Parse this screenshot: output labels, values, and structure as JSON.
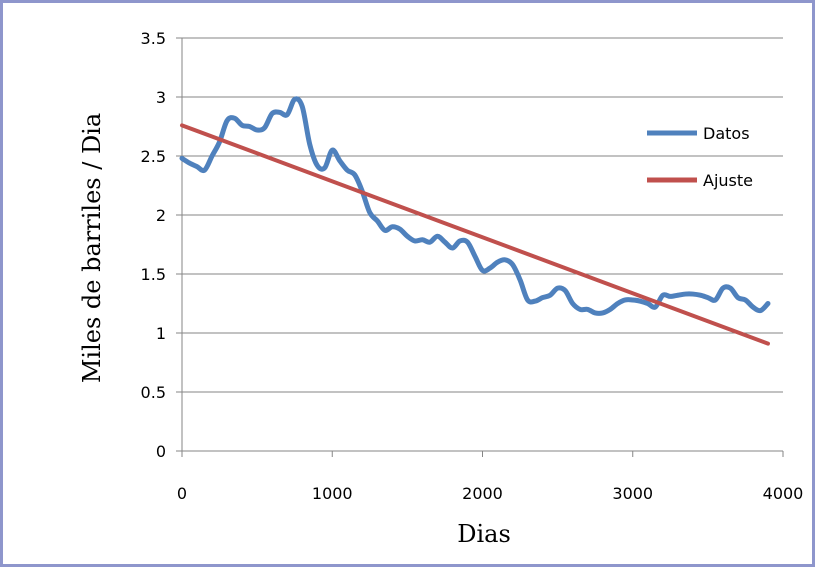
{
  "chart_data": {
    "type": "line",
    "title": "",
    "xlabel": "Dias",
    "ylabel": "Miles de barriles / Dia",
    "xlim": [
      0,
      4000
    ],
    "ylim": [
      0,
      3.5
    ],
    "x_ticks": [
      "0",
      "1000",
      "2000",
      "3000",
      "4000"
    ],
    "y_ticks": [
      "0",
      "0.5",
      "1",
      "1.5",
      "2",
      "2.5",
      "3",
      "3.5"
    ],
    "grid": "horizontal",
    "legend_position": "right",
    "series": [
      {
        "name": "Datos",
        "color": "#4f81bd",
        "x": [
          0,
          50,
          100,
          150,
          200,
          250,
          300,
          350,
          400,
          450,
          500,
          550,
          600,
          650,
          700,
          750,
          800,
          850,
          900,
          950,
          1000,
          1050,
          1100,
          1150,
          1200,
          1250,
          1300,
          1350,
          1400,
          1450,
          1500,
          1550,
          1600,
          1650,
          1700,
          1750,
          1800,
          1850,
          1900,
          1950,
          2000,
          2050,
          2100,
          2150,
          2200,
          2250,
          2300,
          2350,
          2400,
          2450,
          2500,
          2550,
          2600,
          2650,
          2700,
          2750,
          2800,
          2850,
          2900,
          2950,
          3000,
          3050,
          3100,
          3150,
          3200,
          3250,
          3300,
          3350,
          3400,
          3450,
          3500,
          3550,
          3600,
          3650,
          3700,
          3750,
          3800,
          3850,
          3900
        ],
        "y": [
          2.48,
          2.44,
          2.41,
          2.38,
          2.5,
          2.62,
          2.8,
          2.82,
          2.76,
          2.75,
          2.72,
          2.74,
          2.86,
          2.87,
          2.85,
          2.98,
          2.92,
          2.6,
          2.42,
          2.4,
          2.55,
          2.46,
          2.38,
          2.34,
          2.2,
          2.02,
          1.95,
          1.87,
          1.9,
          1.88,
          1.82,
          1.78,
          1.79,
          1.77,
          1.82,
          1.77,
          1.72,
          1.78,
          1.77,
          1.65,
          1.53,
          1.55,
          1.6,
          1.62,
          1.58,
          1.45,
          1.28,
          1.27,
          1.3,
          1.32,
          1.38,
          1.36,
          1.25,
          1.2,
          1.2,
          1.17,
          1.17,
          1.2,
          1.25,
          1.28,
          1.28,
          1.27,
          1.25,
          1.22,
          1.32,
          1.31,
          1.32,
          1.33,
          1.33,
          1.32,
          1.3,
          1.28,
          1.38,
          1.38,
          1.3,
          1.28,
          1.22,
          1.19,
          1.25
        ]
      },
      {
        "name": "Ajuste",
        "color": "#c0504d",
        "x": [
          0,
          3900
        ],
        "y": [
          2.76,
          0.91
        ]
      }
    ]
  }
}
